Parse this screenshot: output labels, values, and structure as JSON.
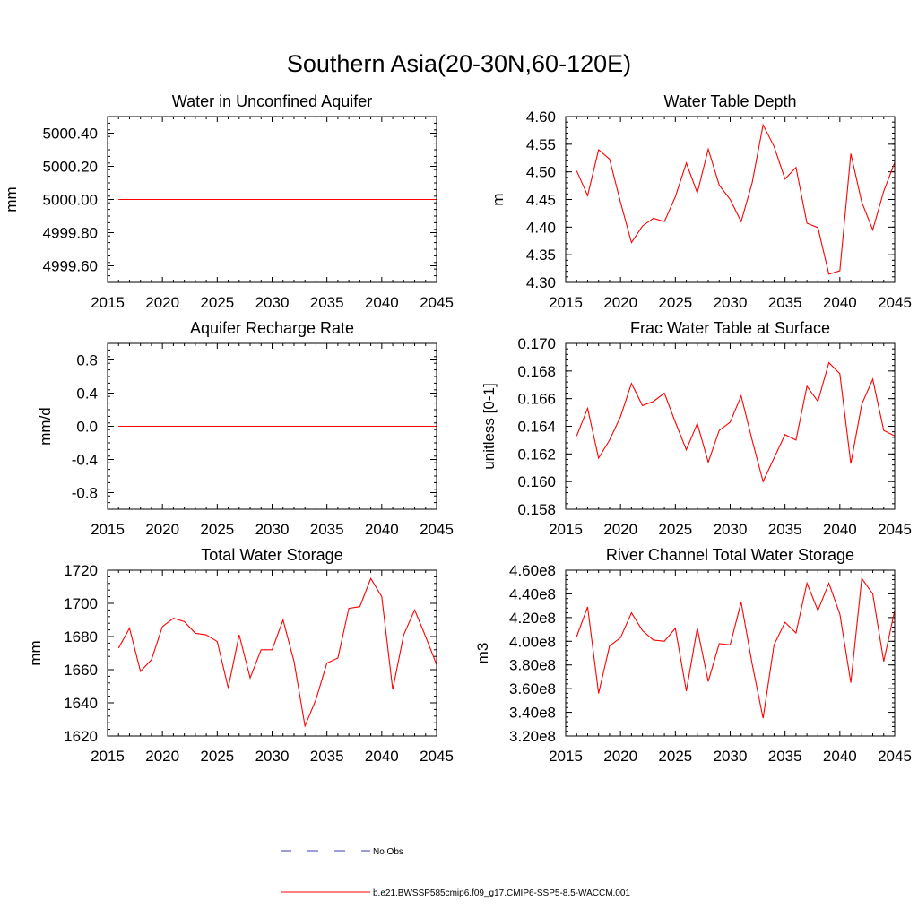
{
  "title": "Southern Asia(20-30N,60-120E)",
  "colors": {
    "model": "#ff0000",
    "obs": "#3b3bb3",
    "axis": "#000000"
  },
  "legend": {
    "obs_label": "No Obs",
    "model_label": "b.e21.BWSSP585cmip6.f09_g17.CMIP6-SSP5-8.5-WACCM.001"
  },
  "chart_data": [
    {
      "type": "line",
      "title": "Water in Unconfined Aquifer",
      "ylabel": "mm",
      "xlim": [
        2015,
        2045
      ],
      "ylim": [
        4999.5,
        5000.5
      ],
      "xticks": [
        "2015",
        "2020",
        "2025",
        "2030",
        "2035",
        "2040",
        "2045"
      ],
      "yticks": [
        4999.6,
        4999.8,
        5000.0,
        5000.2,
        5000.4
      ],
      "yticklabels": [
        "4999.60",
        "4999.80",
        "5000.00",
        "5000.20",
        "5000.40"
      ],
      "x": [
        2016,
        2017,
        2018,
        2019,
        2020,
        2021,
        2022,
        2023,
        2024,
        2025,
        2026,
        2027,
        2028,
        2029,
        2030,
        2031,
        2032,
        2033,
        2034,
        2035,
        2036,
        2037,
        2038,
        2039,
        2040,
        2041,
        2042,
        2043,
        2044,
        2045
      ],
      "series": [
        {
          "values": [
            5000,
            5000,
            5000,
            5000,
            5000,
            5000,
            5000,
            5000,
            5000,
            5000,
            5000,
            5000,
            5000,
            5000,
            5000,
            5000,
            5000,
            5000,
            5000,
            5000,
            5000,
            5000,
            5000,
            5000,
            5000,
            5000,
            5000,
            5000,
            5000,
            5000
          ]
        }
      ]
    },
    {
      "type": "line",
      "title": "Water Table Depth",
      "ylabel": "m",
      "xlim": [
        2015,
        2045
      ],
      "ylim": [
        4.3,
        4.6
      ],
      "xticks": [
        "2015",
        "2020",
        "2025",
        "2030",
        "2035",
        "2040",
        "2045"
      ],
      "yticks": [
        4.3,
        4.35,
        4.4,
        4.45,
        4.5,
        4.55,
        4.6
      ],
      "yticklabels": [
        "4.30",
        "4.35",
        "4.40",
        "4.45",
        "4.50",
        "4.55",
        "4.60"
      ],
      "x": [
        2016,
        2017,
        2018,
        2019,
        2020,
        2021,
        2022,
        2023,
        2024,
        2025,
        2026,
        2027,
        2028,
        2029,
        2030,
        2031,
        2032,
        2033,
        2034,
        2035,
        2036,
        2037,
        2038,
        2039,
        2040,
        2041,
        2042,
        2043,
        2044,
        2045
      ],
      "series": [
        {
          "values": [
            4.502,
            4.457,
            4.54,
            4.523,
            4.445,
            4.372,
            4.402,
            4.416,
            4.41,
            4.455,
            4.516,
            4.462,
            4.541,
            4.476,
            4.45,
            4.41,
            4.48,
            4.585,
            4.546,
            4.487,
            4.508,
            4.407,
            4.399,
            4.315,
            4.321,
            4.533,
            4.445,
            4.395,
            4.465,
            4.517
          ]
        }
      ]
    },
    {
      "type": "line",
      "title": "Aquifer Recharge Rate",
      "ylabel": "mm/d",
      "xlim": [
        2015,
        2045
      ],
      "ylim": [
        -1.0,
        1.0
      ],
      "xticks": [
        "2015",
        "2020",
        "2025",
        "2030",
        "2035",
        "2040",
        "2045"
      ],
      "yticks": [
        -0.8,
        -0.4,
        0.0,
        0.4,
        0.8
      ],
      "yticklabels": [
        "-0.8",
        "-0.4",
        "0.0",
        "0.4",
        "0.8"
      ],
      "x": [
        2016,
        2017,
        2018,
        2019,
        2020,
        2021,
        2022,
        2023,
        2024,
        2025,
        2026,
        2027,
        2028,
        2029,
        2030,
        2031,
        2032,
        2033,
        2034,
        2035,
        2036,
        2037,
        2038,
        2039,
        2040,
        2041,
        2042,
        2043,
        2044,
        2045
      ],
      "series": [
        {
          "values": [
            0,
            0,
            0,
            0,
            0,
            0,
            0,
            0,
            0,
            0,
            0,
            0,
            0,
            0,
            0,
            0,
            0,
            0,
            0,
            0,
            0,
            0,
            0,
            0,
            0,
            0,
            0,
            0,
            0,
            0
          ]
        }
      ]
    },
    {
      "type": "line",
      "title": "Frac Water Table at Surface",
      "ylabel": "unitless [0-1]",
      "xlim": [
        2015,
        2045
      ],
      "ylim": [
        0.158,
        0.17
      ],
      "xticks": [
        "2015",
        "2020",
        "2025",
        "2030",
        "2035",
        "2040",
        "2045"
      ],
      "yticks": [
        0.158,
        0.16,
        0.162,
        0.164,
        0.166,
        0.168,
        0.17
      ],
      "yticklabels": [
        "0.158",
        "0.160",
        "0.162",
        "0.164",
        "0.166",
        "0.168",
        "0.170"
      ],
      "x": [
        2016,
        2017,
        2018,
        2019,
        2020,
        2021,
        2022,
        2023,
        2024,
        2025,
        2026,
        2027,
        2028,
        2029,
        2030,
        2031,
        2032,
        2033,
        2034,
        2035,
        2036,
        2037,
        2038,
        2039,
        2040,
        2041,
        2042,
        2043,
        2044,
        2045
      ],
      "series": [
        {
          "values": [
            0.1633,
            0.1653,
            0.1617,
            0.163,
            0.1647,
            0.1671,
            0.1655,
            0.1658,
            0.1664,
            0.1643,
            0.1623,
            0.1642,
            0.1614,
            0.1637,
            0.1643,
            0.1662,
            0.163,
            0.16,
            0.1617,
            0.1634,
            0.163,
            0.1669,
            0.1658,
            0.1686,
            0.1678,
            0.1613,
            0.1656,
            0.1674,
            0.1637,
            0.1633
          ]
        }
      ]
    },
    {
      "type": "line",
      "title": "Total Water Storage",
      "ylabel": "mm",
      "xlim": [
        2015,
        2045
      ],
      "ylim": [
        1620,
        1720
      ],
      "xticks": [
        "2015",
        "2020",
        "2025",
        "2030",
        "2035",
        "2040",
        "2045"
      ],
      "yticks": [
        1620,
        1640,
        1660,
        1680,
        1700,
        1720
      ],
      "yticklabels": [
        "1620",
        "1640",
        "1660",
        "1680",
        "1700",
        "1720"
      ],
      "x": [
        2016,
        2017,
        2018,
        2019,
        2020,
        2021,
        2022,
        2023,
        2024,
        2025,
        2026,
        2027,
        2028,
        2029,
        2030,
        2031,
        2032,
        2033,
        2034,
        2035,
        2036,
        2037,
        2038,
        2039,
        2040,
        2041,
        2042,
        2043,
        2044,
        2045
      ],
      "series": [
        {
          "values": [
            1673,
            1685,
            1659,
            1666,
            1686,
            1691,
            1689,
            1682,
            1681,
            1677,
            1649,
            1681,
            1655,
            1672,
            1672,
            1690,
            1665,
            1626,
            1642,
            1664,
            1667,
            1697,
            1698,
            1715,
            1704,
            1648,
            1681,
            1696,
            1680,
            1663
          ]
        }
      ]
    },
    {
      "type": "line",
      "title": "River Channel Total Water Storage",
      "ylabel": "m3",
      "xlim": [
        2015,
        2045
      ],
      "ylim": [
        320000000.0,
        460000000.0
      ],
      "xticks": [
        "2015",
        "2020",
        "2025",
        "2030",
        "2035",
        "2040",
        "2045"
      ],
      "yticks": [
        320000000.0,
        340000000.0,
        360000000.0,
        380000000.0,
        400000000.0,
        420000000.0,
        440000000.0,
        460000000.0
      ],
      "yticklabels": [
        "3.20e8",
        "3.40e8",
        "3.60e8",
        "3.80e8",
        "4.00e8",
        "4.20e8",
        "4.40e8",
        "4.60e8"
      ],
      "x": [
        2016,
        2017,
        2018,
        2019,
        2020,
        2021,
        2022,
        2023,
        2024,
        2025,
        2026,
        2027,
        2028,
        2029,
        2030,
        2031,
        2032,
        2033,
        2034,
        2035,
        2036,
        2037,
        2038,
        2039,
        2040,
        2041,
        2042,
        2043,
        2044,
        2045
      ],
      "series": [
        {
          "values": [
            404000000.0,
            429000000.0,
            356000000.0,
            396000000.0,
            403000000.0,
            424000000.0,
            409000000.0,
            401000000.0,
            400000000.0,
            411000000.0,
            358000000.0,
            411000000.0,
            366000000.0,
            398000000.0,
            397000000.0,
            433000000.0,
            381000000.0,
            335000000.0,
            397000000.0,
            416000000.0,
            407000000.0,
            449000000.0,
            426000000.0,
            449000000.0,
            423000000.0,
            365000000.0,
            453000000.0,
            440000000.0,
            383000000.0,
            426000000.0
          ]
        }
      ]
    }
  ]
}
